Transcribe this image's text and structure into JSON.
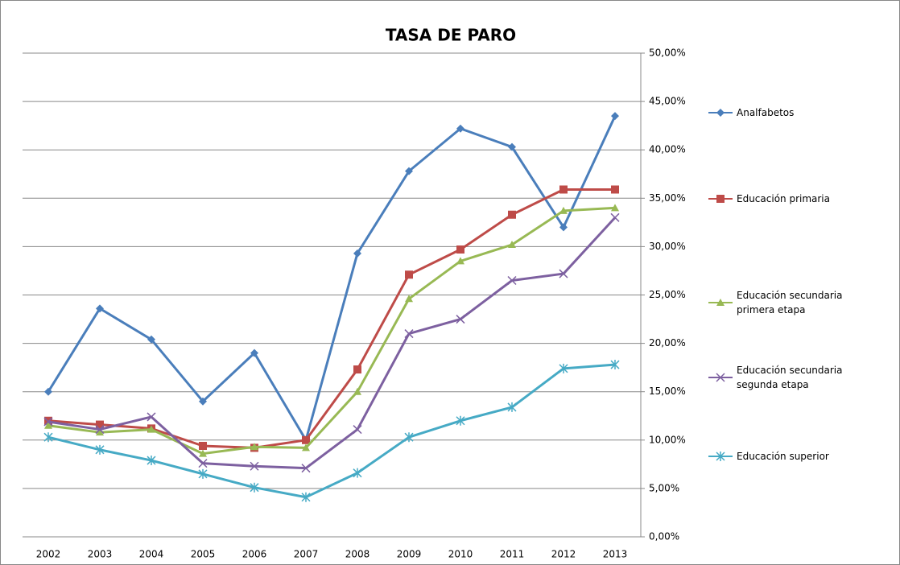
{
  "chart_data": {
    "type": "line",
    "title": "TASA DE PARO",
    "categories": [
      "2002",
      "2003",
      "2004",
      "2005",
      "2006",
      "2007",
      "2008",
      "2009",
      "2010",
      "2011",
      "2012",
      "2013"
    ],
    "series": [
      {
        "name": "Analfabetos",
        "color": "#4a7ebb",
        "marker": "diamond",
        "values": [
          15.0,
          23.6,
          20.4,
          14.0,
          19.0,
          10.0,
          29.3,
          37.8,
          42.2,
          40.3,
          32.0,
          43.5
        ]
      },
      {
        "name": "Educación primaria",
        "color": "#be4b48",
        "marker": "square",
        "values": [
          12.0,
          11.6,
          11.2,
          9.4,
          9.2,
          10.0,
          17.3,
          27.1,
          29.7,
          33.3,
          35.9,
          35.9
        ]
      },
      {
        "name": "Educación secundaria primera etapa",
        "color": "#98b954",
        "marker": "triangle",
        "values": [
          11.5,
          10.8,
          11.1,
          8.6,
          9.3,
          9.2,
          15.0,
          24.6,
          28.5,
          30.2,
          33.7,
          34.0
        ]
      },
      {
        "name": "Educación secundaria segunda etapa",
        "color": "#7d60a0",
        "marker": "x",
        "values": [
          11.9,
          11.1,
          12.4,
          7.6,
          7.3,
          7.1,
          11.1,
          21.0,
          22.5,
          26.5,
          27.2,
          33.0
        ]
      },
      {
        "name": "Educación superior",
        "color": "#46aac5",
        "marker": "star",
        "values": [
          10.3,
          9.0,
          7.9,
          6.5,
          5.1,
          4.1,
          6.6,
          10.3,
          12.0,
          13.4,
          17.4,
          17.8
        ]
      }
    ],
    "ylim": [
      0,
      50
    ],
    "yticks": [
      {
        "value": 0,
        "label": "0,00%"
      },
      {
        "value": 5,
        "label": "5,00%"
      },
      {
        "value": 10,
        "label": "10,00%"
      },
      {
        "value": 15,
        "label": "15,00%"
      },
      {
        "value": 20,
        "label": "20,00%"
      },
      {
        "value": 25,
        "label": "25,00%"
      },
      {
        "value": 30,
        "label": "30,00%"
      },
      {
        "value": 35,
        "label": "35,00%"
      },
      {
        "value": 40,
        "label": "40,00%"
      },
      {
        "value": 45,
        "label": "45,00%"
      },
      {
        "value": 50,
        "label": "50,00%"
      }
    ],
    "grid": true,
    "legend": "right"
  }
}
